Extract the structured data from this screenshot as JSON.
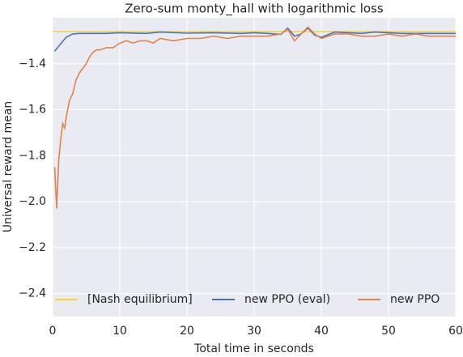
{
  "chart_data": {
    "type": "line",
    "title": "Zero-sum monty_hall with logarithmic loss",
    "xlabel": "Total time in seconds",
    "ylabel": "Universal reward mean",
    "xlim": [
      0,
      60
    ],
    "xticks": [
      0,
      10,
      20,
      30,
      40,
      50,
      60
    ],
    "ylim": [
      -2.5,
      -1.2
    ],
    "yticks": [
      {
        "value": -2.4,
        "label": "−2.4"
      },
      {
        "value": -2.2,
        "label": "−2.2"
      },
      {
        "value": -2.0,
        "label": "−2.0"
      },
      {
        "value": -1.8,
        "label": "−1.8"
      },
      {
        "value": -1.6,
        "label": "−1.6"
      },
      {
        "value": -1.4,
        "label": "−1.4"
      }
    ],
    "grid": true,
    "legend": "lower center",
    "series": [
      {
        "name": "[Nash equilibrium]",
        "color": "#f5d13b",
        "x": [
          0,
          60
        ],
        "values": [
          -1.26,
          -1.26
        ]
      },
      {
        "name": "new PPO (eval)",
        "color": "#4c72b0",
        "x": [
          0.3,
          1,
          2,
          3,
          4,
          6,
          8,
          10,
          14,
          16,
          20,
          24,
          28,
          30,
          32,
          34,
          35,
          36,
          37,
          38,
          39,
          40,
          42,
          46,
          48,
          52,
          56,
          60
        ],
        "values": [
          -1.345,
          -1.32,
          -1.285,
          -1.27,
          -1.268,
          -1.268,
          -1.268,
          -1.265,
          -1.268,
          -1.262,
          -1.267,
          -1.265,
          -1.268,
          -1.265,
          -1.268,
          -1.272,
          -1.245,
          -1.28,
          -1.27,
          -1.245,
          -1.275,
          -1.285,
          -1.262,
          -1.268,
          -1.262,
          -1.268,
          -1.268,
          -1.268
        ]
      },
      {
        "name": "new PPO",
        "color": "#dd8452",
        "x": [
          0.3,
          0.6,
          0.9,
          1.2,
          1.5,
          1.8,
          2.1,
          2.5,
          3,
          3.5,
          4,
          4.5,
          5,
          5.5,
          6,
          6.5,
          7,
          8,
          9,
          10,
          11,
          12,
          13,
          14,
          15,
          16,
          18,
          20,
          22,
          24,
          26,
          28,
          30,
          32,
          34,
          35,
          36,
          37,
          38,
          39,
          40,
          41,
          42,
          44,
          46,
          48,
          50,
          52,
          54,
          56,
          58,
          60
        ],
        "values": [
          -1.85,
          -2.03,
          -1.82,
          -1.73,
          -1.66,
          -1.68,
          -1.62,
          -1.56,
          -1.53,
          -1.47,
          -1.44,
          -1.42,
          -1.4,
          -1.37,
          -1.35,
          -1.34,
          -1.34,
          -1.33,
          -1.33,
          -1.31,
          -1.3,
          -1.31,
          -1.3,
          -1.3,
          -1.31,
          -1.29,
          -1.3,
          -1.29,
          -1.29,
          -1.28,
          -1.29,
          -1.28,
          -1.28,
          -1.28,
          -1.27,
          -1.25,
          -1.3,
          -1.27,
          -1.24,
          -1.27,
          -1.29,
          -1.28,
          -1.27,
          -1.27,
          -1.28,
          -1.28,
          -1.27,
          -1.28,
          -1.27,
          -1.28,
          -1.28,
          -1.28
        ]
      }
    ]
  }
}
